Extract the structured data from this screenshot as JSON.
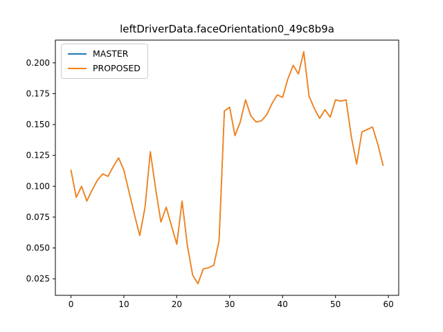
{
  "figure": {
    "title": "leftDriverData.faceOrientation0_49c8b9a",
    "background": "#ffffff",
    "spine_color": "#000000"
  },
  "legend": {
    "position": "upper-left",
    "items": [
      {
        "label": "MASTER",
        "color": "#1f77b4"
      },
      {
        "label": "PROPOSED",
        "color": "#ff7f0e"
      }
    ]
  },
  "chart_data": {
    "type": "line",
    "title": "leftDriverData.faceOrientation0_49c8b9a",
    "xlabel": "",
    "ylabel": "",
    "grid": false,
    "legend_position": "upper-left",
    "xlim": [
      -2.95,
      61.95
    ],
    "ylim": [
      0.0116,
      0.2184
    ],
    "xticks": [
      0,
      10,
      20,
      30,
      40,
      50,
      60
    ],
    "xtick_labels": [
      "0",
      "10",
      "20",
      "30",
      "40",
      "50",
      "60"
    ],
    "yticks": [
      0.025,
      0.05,
      0.075,
      0.1,
      0.125,
      0.15,
      0.175,
      0.2
    ],
    "ytick_labels": [
      "0.025",
      "0.050",
      "0.075",
      "0.100",
      "0.125",
      "0.150",
      "0.175",
      "0.200"
    ],
    "x": [
      0,
      1,
      2,
      3,
      4,
      5,
      6,
      7,
      8,
      9,
      10,
      11,
      12,
      13,
      14,
      15,
      16,
      17,
      18,
      19,
      20,
      21,
      22,
      23,
      24,
      25,
      26,
      27,
      28,
      29,
      30,
      31,
      32,
      33,
      34,
      35,
      36,
      37,
      38,
      39,
      40,
      41,
      42,
      43,
      44,
      45,
      46,
      47,
      48,
      49,
      50,
      51,
      52,
      53,
      54,
      55,
      56,
      57,
      58,
      59
    ],
    "series": [
      {
        "name": "MASTER",
        "color": "#1f77b4",
        "values": [
          0.113,
          0.091,
          0.1,
          0.088,
          0.097,
          0.105,
          0.11,
          0.108,
          0.116,
          0.123,
          0.113,
          0.095,
          0.077,
          0.06,
          0.083,
          0.128,
          0.098,
          0.071,
          0.083,
          0.068,
          0.053,
          0.088,
          0.052,
          0.028,
          0.021,
          0.033,
          0.034,
          0.036,
          0.056,
          0.161,
          0.164,
          0.141,
          0.152,
          0.17,
          0.157,
          0.152,
          0.153,
          0.158,
          0.167,
          0.174,
          0.172,
          0.187,
          0.198,
          0.191,
          0.209,
          0.173,
          0.163,
          0.155,
          0.162,
          0.156,
          0.17,
          0.169,
          0.17,
          0.14,
          0.118,
          0.144,
          0.146,
          0.148,
          0.134,
          0.117
        ]
      },
      {
        "name": "PROPOSED",
        "color": "#ff7f0e",
        "values": [
          0.113,
          0.091,
          0.1,
          0.088,
          0.097,
          0.105,
          0.11,
          0.108,
          0.116,
          0.123,
          0.113,
          0.095,
          0.077,
          0.06,
          0.083,
          0.128,
          0.098,
          0.071,
          0.083,
          0.068,
          0.053,
          0.088,
          0.052,
          0.028,
          0.021,
          0.033,
          0.034,
          0.036,
          0.056,
          0.161,
          0.164,
          0.141,
          0.152,
          0.17,
          0.157,
          0.152,
          0.153,
          0.158,
          0.167,
          0.174,
          0.172,
          0.187,
          0.198,
          0.191,
          0.209,
          0.173,
          0.163,
          0.155,
          0.162,
          0.156,
          0.17,
          0.169,
          0.17,
          0.14,
          0.118,
          0.144,
          0.146,
          0.148,
          0.134,
          0.117
        ]
      }
    ]
  }
}
